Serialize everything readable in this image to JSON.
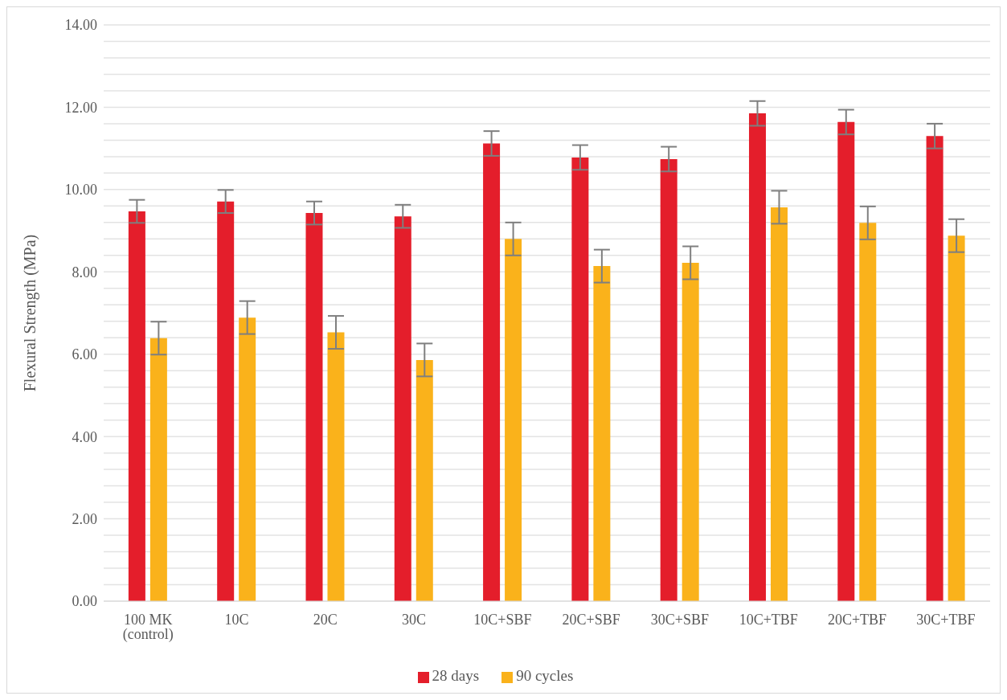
{
  "chart_data": {
    "type": "bar",
    "ylabel": "Flexural Strength (MPa)",
    "categories": [
      "100 MK (control)",
      "10C",
      "20C",
      "30C",
      "10C+SBF",
      "20C+SBF",
      "30C+SBF",
      "10C+TBF",
      "20C+TBF",
      "30C+TBF"
    ],
    "series": [
      {
        "name": "28 days",
        "color": "#e41e2b",
        "values": [
          9.47,
          9.71,
          9.43,
          9.35,
          11.12,
          10.78,
          10.74,
          11.85,
          11.64,
          11.3
        ],
        "errors": [
          0.28,
          0.28,
          0.28,
          0.28,
          0.3,
          0.3,
          0.3,
          0.3,
          0.3,
          0.3
        ]
      },
      {
        "name": "90 cycles",
        "color": "#fab21b",
        "values": [
          6.39,
          6.89,
          6.53,
          5.86,
          8.8,
          8.14,
          8.22,
          9.57,
          9.19,
          8.88
        ],
        "errors": [
          0.4,
          0.4,
          0.4,
          0.4,
          0.4,
          0.4,
          0.4,
          0.4,
          0.4,
          0.4
        ]
      }
    ],
    "ylim": [
      0,
      14
    ],
    "yticks": [
      {
        "value": 0,
        "label": "0.00"
      },
      {
        "value": 0.4,
        "label": null
      },
      {
        "value": 0.8,
        "label": null
      },
      {
        "value": 1.2,
        "label": null
      },
      {
        "value": 1.6,
        "label": null
      },
      {
        "value": 2,
        "label": "2.00"
      },
      {
        "value": 2.4,
        "label": null
      },
      {
        "value": 2.8,
        "label": null
      },
      {
        "value": 3.2,
        "label": null
      },
      {
        "value": 3.6,
        "label": null
      },
      {
        "value": 4,
        "label": "4.00"
      },
      {
        "value": 4.4,
        "label": null
      },
      {
        "value": 4.8,
        "label": null
      },
      {
        "value": 5.2,
        "label": null
      },
      {
        "value": 5.6,
        "label": null
      },
      {
        "value": 6,
        "label": "6.00"
      },
      {
        "value": 6.4,
        "label": null
      },
      {
        "value": 6.8,
        "label": null
      },
      {
        "value": 7.2,
        "label": null
      },
      {
        "value": 7.6,
        "label": null
      },
      {
        "value": 8,
        "label": "8.00"
      },
      {
        "value": 8.4,
        "label": null
      },
      {
        "value": 8.8,
        "label": null
      },
      {
        "value": 9.2,
        "label": null
      },
      {
        "value": 9.6,
        "label": null
      },
      {
        "value": 10,
        "label": "10.00"
      },
      {
        "value": 10.4,
        "label": null
      },
      {
        "value": 10.8,
        "label": null
      },
      {
        "value": 11.2,
        "label": null
      },
      {
        "value": 11.6,
        "label": null
      },
      {
        "value": 12,
        "label": "12.00"
      },
      {
        "value": 12.4,
        "label": null
      },
      {
        "value": 12.8,
        "label": null
      },
      {
        "value": 13.2,
        "label": null
      },
      {
        "value": 13.6,
        "label": null
      },
      {
        "value": 14,
        "label": "14.00"
      }
    ],
    "grid": "y",
    "legend": "bottom"
  }
}
